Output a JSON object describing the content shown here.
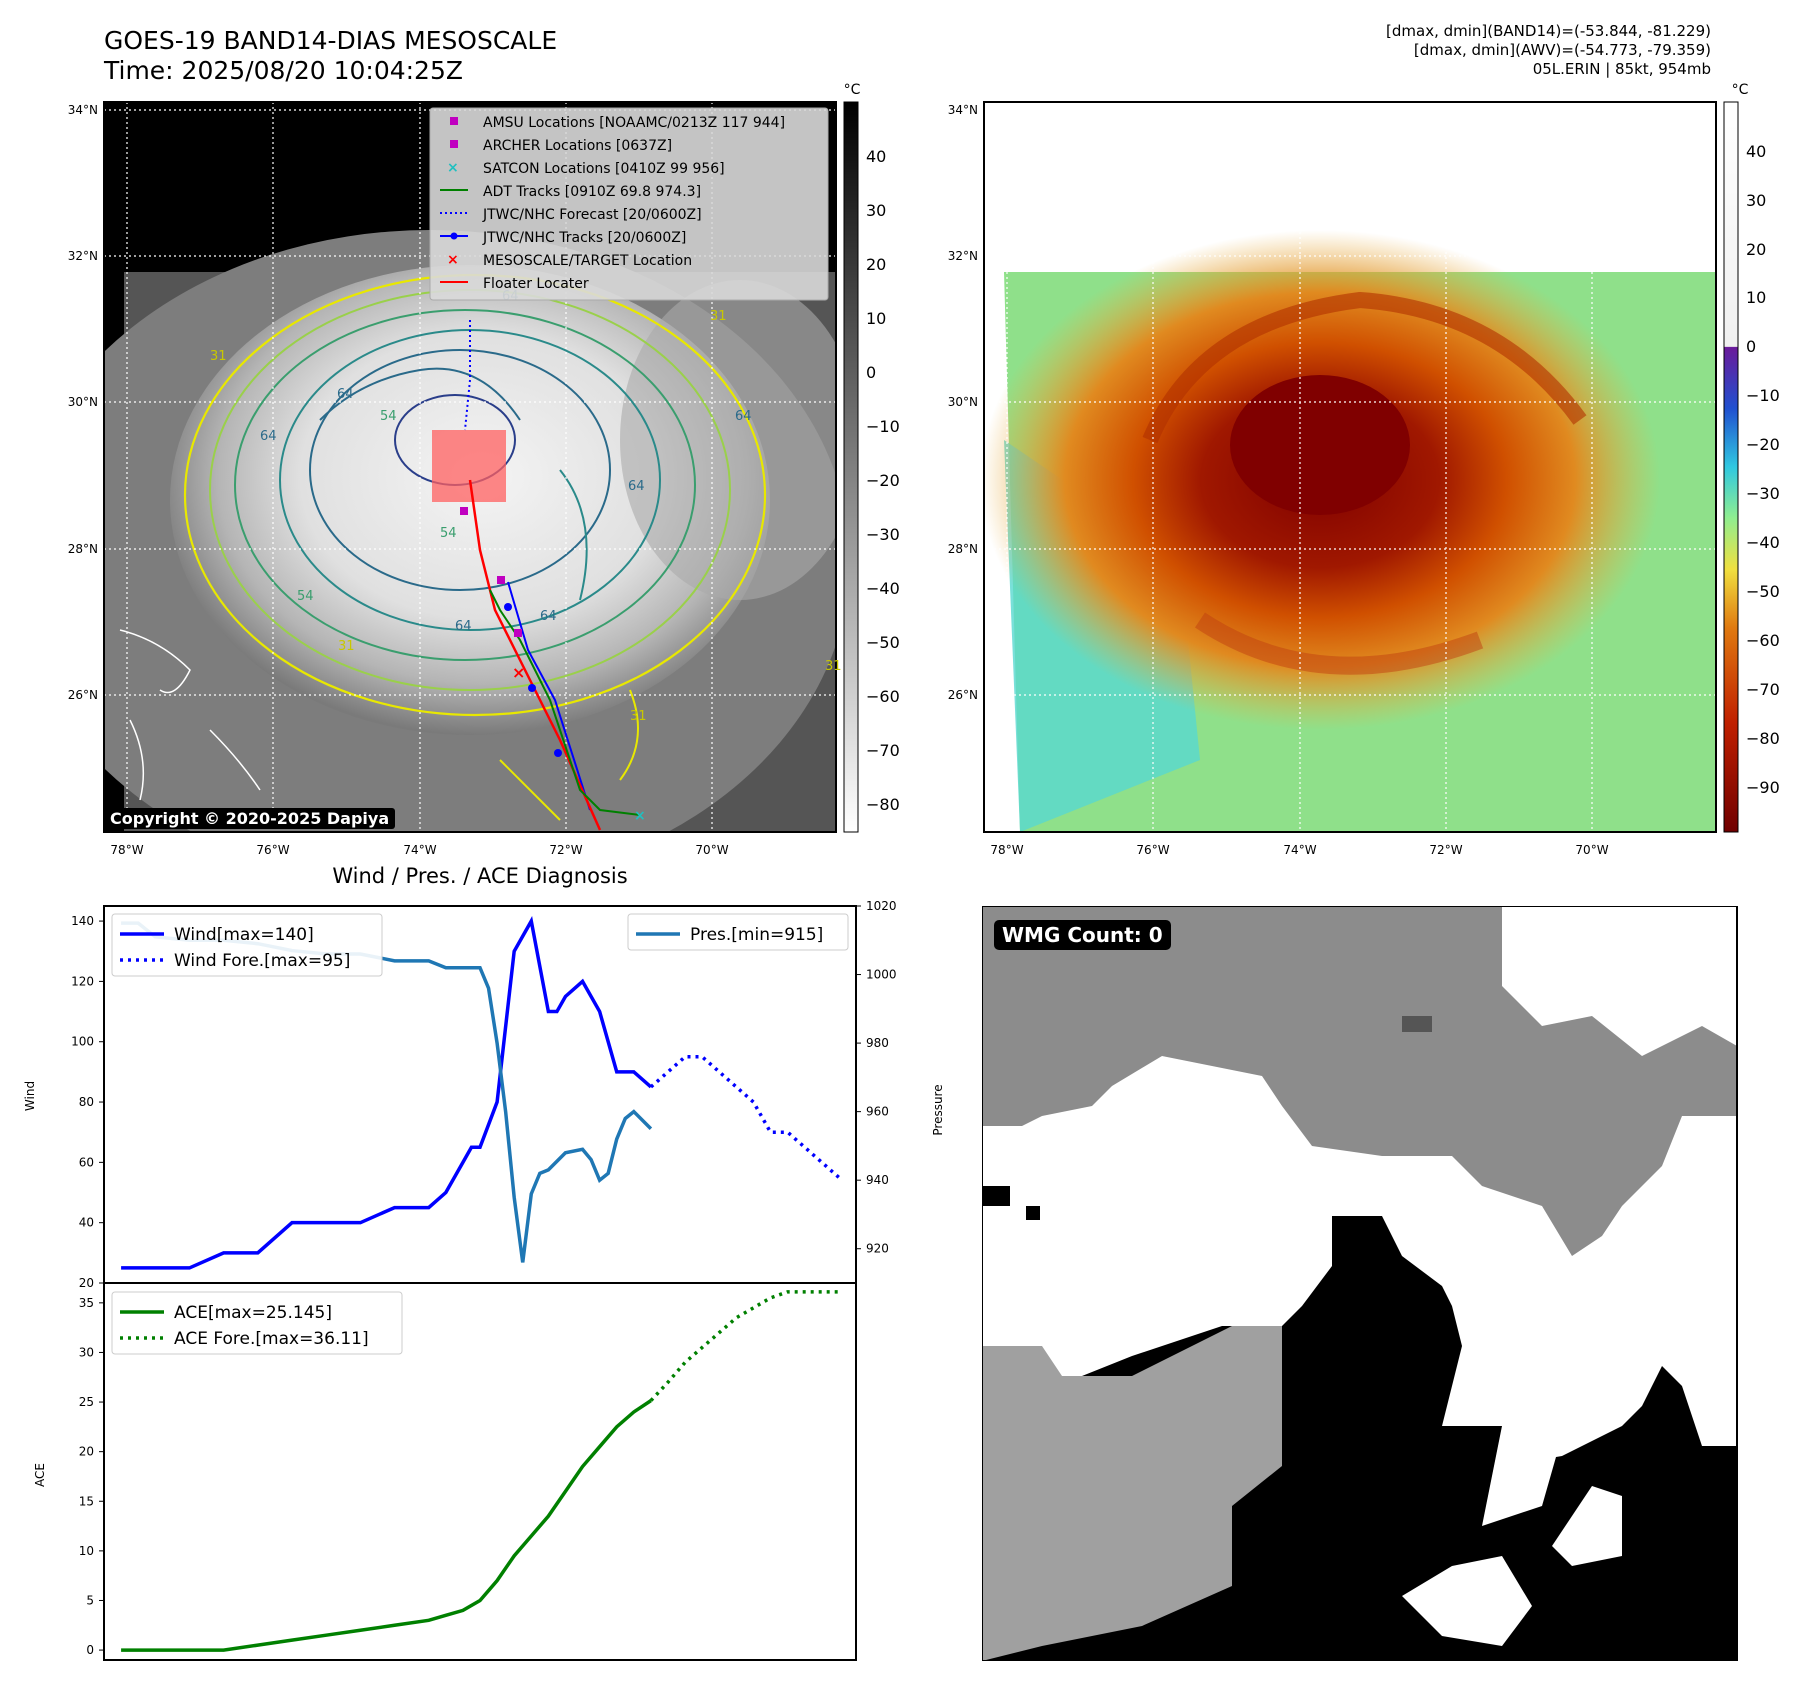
{
  "header": {
    "title": "GOES-19 BAND14-DIAS MESOSCALE",
    "time": "Time: 2025/08/20 10:04:25Z",
    "dmax_band14": "[dmax, dmin](BAND14)=(-53.844, -81.229)",
    "dmax_awv": "[dmax, dmin](AWV)=(-54.773, -79.359)",
    "storm": "05L.ERIN | 85kt, 954mb"
  },
  "map_left": {
    "copyright": "Copyright © 2020-2025 Dapiya",
    "lat_ticks": [
      "34°N",
      "32°N",
      "30°N",
      "28°N",
      "26°N"
    ],
    "lon_ticks": [
      "78°W",
      "76°W",
      "74°W",
      "72°W",
      "70°W"
    ],
    "colorbar_unit": "°C",
    "colorbar_ticks": [
      "40",
      "30",
      "20",
      "10",
      "0",
      "−10",
      "−20",
      "−30",
      "−40",
      "−50",
      "−60",
      "−70",
      "−80"
    ],
    "legend": [
      {
        "label": "AMSU Locations [NOAAMC/0213Z 117 944]",
        "color": "#c000c0",
        "marker": "square"
      },
      {
        "label": "ARCHER Locations [0637Z]",
        "color": "#c000c0",
        "marker": "square"
      },
      {
        "label": "SATCON Locations [0410Z 99 956]",
        "color": "#20c0c0",
        "marker": "x"
      },
      {
        "label": "ADT Tracks [0910Z 69.8 974.3]",
        "color": "#008000",
        "marker": "line"
      },
      {
        "label": "JTWC/NHC Forecast [20/0600Z]",
        "color": "#0000ff",
        "marker": "dotted"
      },
      {
        "label": "JTWC/NHC Tracks [20/0600Z]",
        "color": "#0000ff",
        "marker": "line-dot"
      },
      {
        "label": "MESOSCALE/TARGET Location",
        "color": "#ff0000",
        "marker": "x"
      },
      {
        "label": "Floater Locater",
        "color": "#ff0000",
        "marker": "line"
      }
    ],
    "contour_labels": [
      "64",
      "64",
      "64",
      "64",
      "64",
      "64",
      "64",
      "54",
      "54",
      "54",
      "31",
      "31",
      "31",
      "31",
      "31"
    ]
  },
  "map_right": {
    "lat_ticks": [
      "34°N",
      "32°N",
      "30°N",
      "28°N",
      "26°N"
    ],
    "lon_ticks": [
      "78°W",
      "76°W",
      "74°W",
      "72°W",
      "70°W"
    ],
    "colorbar_unit": "°C",
    "colorbar_ticks": [
      "40",
      "30",
      "20",
      "10",
      "0",
      "−10",
      "−20",
      "−30",
      "−40",
      "−50",
      "−60",
      "−70",
      "−80",
      "−90"
    ]
  },
  "wmg": {
    "label": "WMG Count: 0"
  },
  "chart_data": [
    {
      "type": "line",
      "title": "Wind / Pres. / ACE Diagnosis",
      "ylabel": "Wind",
      "ylabel_right": "Pressure",
      "ylim": [
        20,
        145
      ],
      "ylim_right": [
        910,
        1020
      ],
      "yticks": [
        20,
        40,
        60,
        80,
        100,
        120,
        140
      ],
      "yticks_right": [
        920,
        940,
        960,
        980,
        1000,
        1020
      ],
      "series": [
        {
          "name": "Wind[max=140]",
          "color": "#0000ff",
          "style": "solid",
          "axis": "left",
          "x": [
            0,
            2,
            4,
            6,
            8,
            10,
            12,
            14,
            16,
            18,
            19,
            20,
            20.5,
            21,
            22,
            23,
            24,
            24.5,
            25,
            25.5,
            26,
            27,
            28,
            29,
            30,
            31
          ],
          "y": [
            25,
            25,
            25,
            30,
            30,
            40,
            40,
            40,
            45,
            45,
            50,
            60,
            65,
            65,
            80,
            130,
            140,
            125,
            110,
            110,
            115,
            120,
            110,
            90,
            90,
            85
          ]
        },
        {
          "name": "Wind Fore.[max=95]",
          "color": "#0000ff",
          "style": "dotted",
          "axis": "left",
          "x": [
            31,
            32,
            33,
            34,
            35,
            36,
            37,
            38,
            39,
            40,
            41,
            42
          ],
          "y": [
            85,
            90,
            95,
            95,
            90,
            85,
            80,
            70,
            70,
            65,
            60,
            55
          ]
        },
        {
          "name": "Pres.[min=915]",
          "color": "#1f77b4",
          "style": "solid",
          "axis": "right",
          "x": [
            0,
            1,
            2,
            4,
            6,
            8,
            10,
            12,
            14,
            16,
            18,
            19,
            20,
            21,
            21.5,
            22,
            22.5,
            23,
            23.5,
            24,
            24.5,
            25,
            26,
            27,
            27.5,
            28,
            28.5,
            29,
            29.5,
            30,
            31
          ],
          "y": [
            1015,
            1015,
            1011,
            1010,
            1010,
            1009,
            1007,
            1006,
            1006,
            1004,
            1004,
            1002,
            1002,
            1002,
            996,
            980,
            960,
            935,
            916,
            936,
            942,
            943,
            948,
            949,
            946,
            940,
            942,
            952,
            958,
            960,
            955
          ]
        }
      ]
    },
    {
      "type": "line",
      "ylabel": "ACE",
      "ylim": [
        -1,
        37
      ],
      "yticks": [
        0,
        5,
        10,
        15,
        20,
        25,
        30,
        35
      ],
      "series": [
        {
          "name": "ACE[max=25.145]",
          "color": "#008000",
          "style": "solid",
          "x": [
            0,
            2,
            4,
            6,
            8,
            10,
            12,
            14,
            16,
            18,
            19,
            20,
            21,
            22,
            23,
            24,
            25,
            26,
            27,
            28,
            29,
            30,
            31
          ],
          "y": [
            0,
            0,
            0,
            0,
            0.5,
            1,
            1.5,
            2,
            2.5,
            3,
            3.5,
            4,
            5,
            7,
            9.5,
            11.5,
            13.5,
            16,
            18.5,
            20.5,
            22.5,
            24,
            25.145
          ]
        },
        {
          "name": "ACE Fore.[max=36.11]",
          "color": "#008000",
          "style": "dotted",
          "x": [
            31,
            32,
            33,
            34,
            35,
            36,
            37,
            38,
            39,
            40,
            41,
            42
          ],
          "y": [
            25.145,
            27,
            29,
            30.5,
            32,
            33.5,
            34.5,
            35.5,
            36.11,
            36.11,
            36.11,
            36.11
          ]
        }
      ]
    }
  ]
}
